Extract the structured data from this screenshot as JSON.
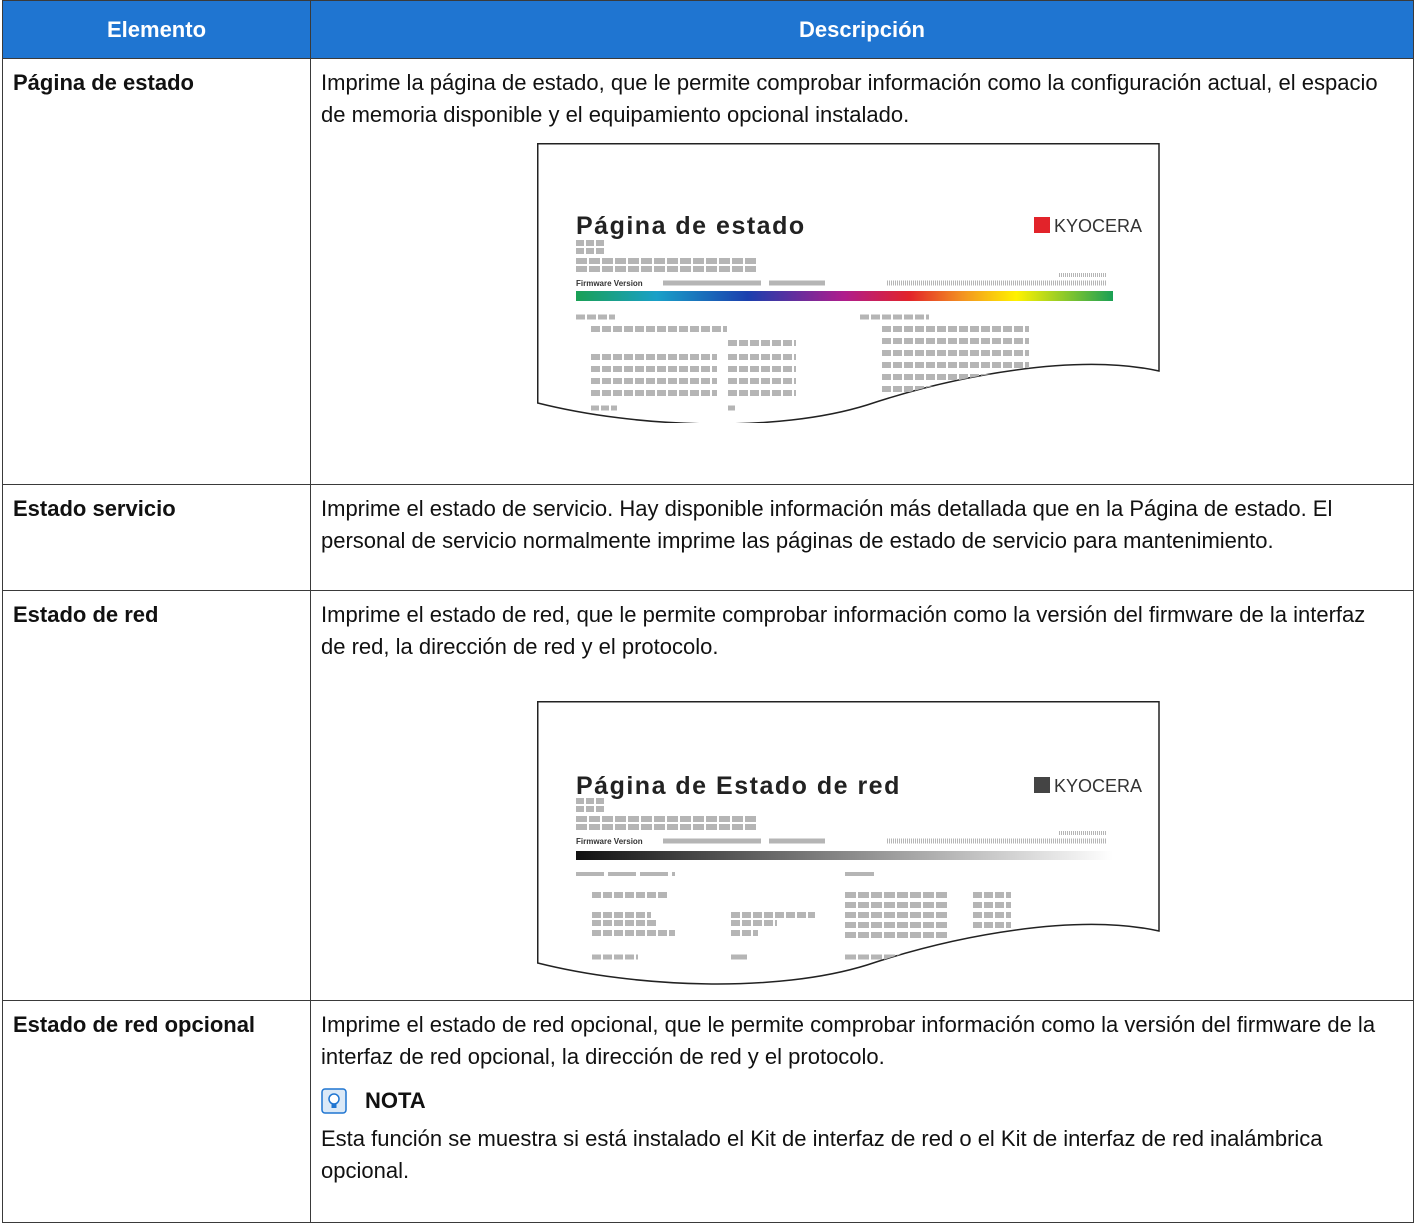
{
  "table": {
    "header": [
      "Elemento",
      "Descripción"
    ],
    "rows": [
      {
        "item": "Página de estado",
        "description": "Imprime la página de estado, que le permite comprobar información como la configuración actual, el espacio de memoria disponible y el equipamiento opcional instalado.",
        "illustration": {
          "title": "Página de estado",
          "logo": "KYOCERA",
          "label": "Firmware Version"
        }
      },
      {
        "item": "Estado servicio",
        "description": "Imprime el estado de servicio. Hay disponible información más detallada que en la Página de estado. El personal de servicio normalmente imprime las páginas de estado de servicio para mantenimiento."
      },
      {
        "item": "Estado de red",
        "description": "Imprime el estado de red, que le permite comprobar información como la versión del firmware de la interfaz de red, la dirección de red y el protocolo.",
        "illustration": {
          "title": "Página de Estado de red",
          "logo": "KYOCERA",
          "label": "Firmware Version"
        }
      },
      {
        "item": "Estado de red opcional",
        "description": "Imprime el estado de red opcional, que le permite comprobar información como la versión del firmware de la interfaz de red opcional, la dirección de red y el protocolo.",
        "note": {
          "title": "NOTA",
          "text": "Esta función se muestra si está instalado el Kit de interfaz de red o el Kit de interfaz de red inalámbrica opcional."
        }
      }
    ]
  }
}
